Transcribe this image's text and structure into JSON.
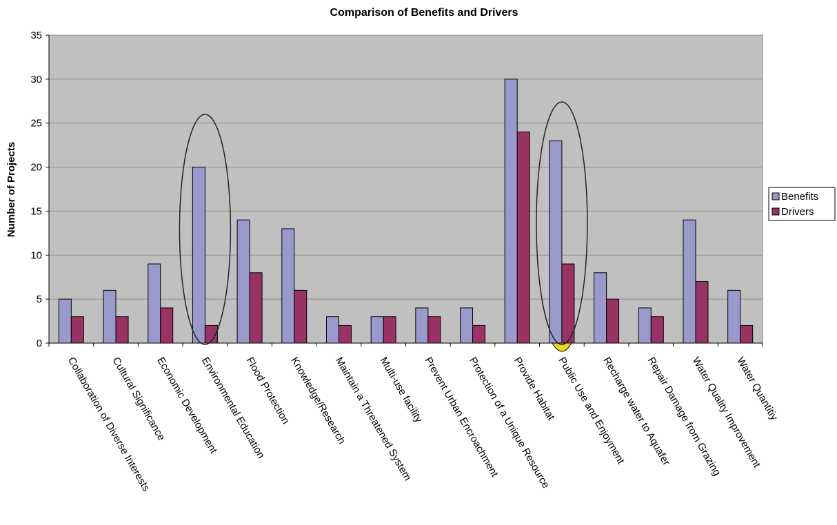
{
  "chart_data": {
    "type": "bar",
    "title": "Comparison of Benefits and Drivers",
    "xlabel": "",
    "ylabel": "Number of Projects",
    "ylim": [
      0,
      35
    ],
    "yticks": [
      0,
      5,
      10,
      15,
      20,
      25,
      30,
      35
    ],
    "grid": true,
    "legend_position": "right",
    "categories": [
      "Collaboration of Diverse Interests",
      "Cultural Significance",
      "Economic Development",
      "Environmental Education",
      "Flood Protection",
      "Knowledge/Research",
      "Maintain a Threatened System",
      "Multi-use facility",
      "Prevent Urban Encroachment",
      "Protection of a Unique Resource",
      "Provide Habitat",
      "Public Use and Enjoyment",
      "Recharge water to Aquafer",
      "Repair Damage from Grazing",
      "Water Quality Improvement",
      "Water Quantitiy"
    ],
    "series": [
      {
        "name": "Benefits",
        "color": "#9999cc",
        "values": [
          5,
          6,
          9,
          20,
          14,
          13,
          3,
          3,
          4,
          4,
          30,
          23,
          8,
          4,
          14,
          6
        ]
      },
      {
        "name": "Drivers",
        "color": "#993366",
        "values": [
          3,
          3,
          4,
          2,
          8,
          6,
          2,
          3,
          3,
          2,
          24,
          9,
          5,
          3,
          7,
          2
        ]
      }
    ],
    "annotations": [
      {
        "shape": "ellipse",
        "category": "Environmental Education"
      },
      {
        "shape": "ellipse",
        "category": "Public Use and Enjoyment"
      }
    ],
    "colors": {
      "plot_background": "#c0c0c0",
      "gridline": "#8c8c8c",
      "highlight_fill": "#b8282e",
      "highlight_base": "#e8d81e"
    }
  }
}
